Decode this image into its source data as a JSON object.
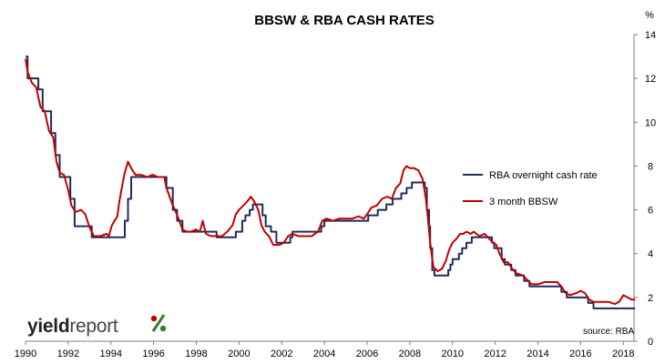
{
  "chart_data": {
    "type": "line",
    "title": "BBSW & RBA CASH RATES",
    "ylabel": "%",
    "xlim": [
      1990,
      2018.5
    ],
    "ylim": [
      0,
      14
    ],
    "x_ticks": [
      "1990",
      "1992",
      "1994",
      "1996",
      "1998",
      "2000",
      "2002",
      "2004",
      "2006",
      "2008",
      "2010",
      "2012",
      "2014",
      "2016",
      "2018"
    ],
    "y_ticks": [
      "0",
      "2",
      "4",
      "6",
      "8",
      "10",
      "12",
      "14"
    ],
    "grid": false,
    "legend_position": "right",
    "source": "source: RBA",
    "logo": {
      "part1": "yield",
      "part2": "report",
      "symbol": "%"
    },
    "series": [
      {
        "name": "RBA overnight cash rate",
        "color": "#1f2d5c",
        "step": true,
        "points": [
          [
            1990.0,
            13.0
          ],
          [
            1990.1,
            12.0
          ],
          [
            1990.6,
            11.5
          ],
          [
            1990.8,
            10.5
          ],
          [
            1991.2,
            9.5
          ],
          [
            1991.4,
            8.5
          ],
          [
            1991.6,
            7.5
          ],
          [
            1992.1,
            6.5
          ],
          [
            1992.3,
            5.25
          ],
          [
            1993.1,
            4.75
          ],
          [
            1994.65,
            5.5
          ],
          [
            1994.8,
            6.5
          ],
          [
            1994.95,
            7.5
          ],
          [
            1996.6,
            7.0
          ],
          [
            1996.9,
            6.0
          ],
          [
            1997.1,
            5.5
          ],
          [
            1997.35,
            5.0
          ],
          [
            1997.55,
            5.0
          ],
          [
            1998.95,
            4.75
          ],
          [
            1999.85,
            5.0
          ],
          [
            2000.15,
            5.5
          ],
          [
            2000.3,
            5.75
          ],
          [
            2000.5,
            6.0
          ],
          [
            2000.65,
            6.25
          ],
          [
            2001.1,
            5.75
          ],
          [
            2001.25,
            5.25
          ],
          [
            2001.5,
            5.0
          ],
          [
            2001.75,
            4.5
          ],
          [
            2002.4,
            4.75
          ],
          [
            2002.5,
            5.0
          ],
          [
            2003.85,
            5.25
          ],
          [
            2004.0,
            5.5
          ],
          [
            2005.2,
            5.5
          ],
          [
            2006.05,
            5.75
          ],
          [
            2006.5,
            6.0
          ],
          [
            2006.9,
            6.25
          ],
          [
            2007.2,
            6.5
          ],
          [
            2007.6,
            6.75
          ],
          [
            2007.85,
            7.0
          ],
          [
            2008.1,
            7.25
          ],
          [
            2008.7,
            7.0
          ],
          [
            2008.8,
            6.0
          ],
          [
            2008.9,
            5.25
          ],
          [
            2008.95,
            4.25
          ],
          [
            2009.05,
            3.25
          ],
          [
            2009.15,
            3.0
          ],
          [
            2009.8,
            3.25
          ],
          [
            2009.9,
            3.5
          ],
          [
            2010.0,
            3.75
          ],
          [
            2010.3,
            4.0
          ],
          [
            2010.45,
            4.25
          ],
          [
            2010.65,
            4.5
          ],
          [
            2010.9,
            4.75
          ],
          [
            2011.85,
            4.5
          ],
          [
            2011.95,
            4.25
          ],
          [
            2012.3,
            3.75
          ],
          [
            2012.45,
            3.5
          ],
          [
            2012.75,
            3.25
          ],
          [
            2012.95,
            3.0
          ],
          [
            2013.35,
            2.75
          ],
          [
            2013.6,
            2.5
          ],
          [
            2015.1,
            2.25
          ],
          [
            2015.35,
            2.0
          ],
          [
            2016.35,
            1.75
          ],
          [
            2016.6,
            1.5
          ],
          [
            2018.55,
            1.5
          ]
        ]
      },
      {
        "name": "3 month BBSW",
        "color": "#c00000",
        "step": false,
        "points": [
          [
            1990.0,
            12.9
          ],
          [
            1990.1,
            12.3
          ],
          [
            1990.3,
            11.8
          ],
          [
            1990.5,
            11.6
          ],
          [
            1990.7,
            10.7
          ],
          [
            1990.9,
            10.5
          ],
          [
            1991.1,
            9.6
          ],
          [
            1991.3,
            9.3
          ],
          [
            1991.45,
            8.2
          ],
          [
            1991.6,
            7.7
          ],
          [
            1991.8,
            7.6
          ],
          [
            1992.0,
            6.9
          ],
          [
            1992.15,
            6.2
          ],
          [
            1992.35,
            5.9
          ],
          [
            1992.6,
            6.0
          ],
          [
            1992.8,
            5.8
          ],
          [
            1993.0,
            5.2
          ],
          [
            1993.2,
            4.8
          ],
          [
            1993.5,
            4.8
          ],
          [
            1993.8,
            4.9
          ],
          [
            1993.9,
            4.8
          ],
          [
            1994.05,
            5.3
          ],
          [
            1994.3,
            5.7
          ],
          [
            1994.4,
            6.4
          ],
          [
            1994.55,
            7.2
          ],
          [
            1994.65,
            7.7
          ],
          [
            1994.8,
            8.2
          ],
          [
            1994.95,
            7.9
          ],
          [
            1995.15,
            7.6
          ],
          [
            1995.4,
            7.6
          ],
          [
            1995.7,
            7.5
          ],
          [
            1995.95,
            7.6
          ],
          [
            1996.2,
            7.5
          ],
          [
            1996.5,
            7.5
          ],
          [
            1996.6,
            7.0
          ],
          [
            1996.75,
            6.6
          ],
          [
            1996.9,
            6.2
          ],
          [
            1997.0,
            6.0
          ],
          [
            1997.2,
            5.5
          ],
          [
            1997.35,
            5.1
          ],
          [
            1997.55,
            5.0
          ],
          [
            1997.75,
            5.0
          ],
          [
            1998.0,
            5.1
          ],
          [
            1998.1,
            5.0
          ],
          [
            1998.2,
            5.1
          ],
          [
            1998.3,
            5.5
          ],
          [
            1998.45,
            4.9
          ],
          [
            1998.7,
            4.8
          ],
          [
            1998.95,
            4.8
          ],
          [
            1999.2,
            4.8
          ],
          [
            1999.45,
            5.0
          ],
          [
            1999.7,
            5.3
          ],
          [
            1999.85,
            5.8
          ],
          [
            2000.0,
            6.0
          ],
          [
            2000.2,
            6.2
          ],
          [
            2000.4,
            6.4
          ],
          [
            2000.55,
            6.6
          ],
          [
            2000.7,
            6.4
          ],
          [
            2000.9,
            6.0
          ],
          [
            2001.05,
            5.3
          ],
          [
            2001.2,
            5.0
          ],
          [
            2001.4,
            4.8
          ],
          [
            2001.6,
            4.4
          ],
          [
            2001.9,
            4.4
          ],
          [
            2002.1,
            4.5
          ],
          [
            2002.3,
            4.8
          ],
          [
            2002.5,
            4.9
          ],
          [
            2002.8,
            4.8
          ],
          [
            2003.1,
            4.8
          ],
          [
            2003.4,
            4.8
          ],
          [
            2003.7,
            5.0
          ],
          [
            2003.9,
            5.5
          ],
          [
            2004.1,
            5.6
          ],
          [
            2004.4,
            5.5
          ],
          [
            2004.7,
            5.6
          ],
          [
            2004.95,
            5.6
          ],
          [
            2005.3,
            5.6
          ],
          [
            2005.6,
            5.7
          ],
          [
            2005.85,
            5.6
          ],
          [
            2006.0,
            5.8
          ],
          [
            2006.2,
            6.1
          ],
          [
            2006.45,
            6.2
          ],
          [
            2006.7,
            6.5
          ],
          [
            2006.95,
            6.6
          ],
          [
            2007.15,
            6.5
          ],
          [
            2007.35,
            7.0
          ],
          [
            2007.55,
            7.2
          ],
          [
            2007.7,
            7.8
          ],
          [
            2007.85,
            8.0
          ],
          [
            2008.0,
            7.9
          ],
          [
            2008.2,
            7.9
          ],
          [
            2008.4,
            7.8
          ],
          [
            2008.6,
            7.4
          ],
          [
            2008.75,
            6.5
          ],
          [
            2008.85,
            5.6
          ],
          [
            2008.95,
            4.5
          ],
          [
            2009.1,
            3.4
          ],
          [
            2009.3,
            3.2
          ],
          [
            2009.5,
            3.3
          ],
          [
            2009.7,
            3.7
          ],
          [
            2009.85,
            4.2
          ],
          [
            2010.0,
            4.5
          ],
          [
            2010.2,
            4.7
          ],
          [
            2010.35,
            4.9
          ],
          [
            2010.5,
            4.9
          ],
          [
            2010.65,
            5.0
          ],
          [
            2010.85,
            4.9
          ],
          [
            2011.0,
            5.0
          ],
          [
            2011.25,
            4.8
          ],
          [
            2011.5,
            4.9
          ],
          [
            2011.7,
            4.7
          ],
          [
            2011.9,
            4.5
          ],
          [
            2012.05,
            4.4
          ],
          [
            2012.2,
            4.0
          ],
          [
            2012.4,
            3.6
          ],
          [
            2012.6,
            3.6
          ],
          [
            2012.8,
            3.3
          ],
          [
            2013.0,
            3.1
          ],
          [
            2013.3,
            3.0
          ],
          [
            2013.5,
            2.8
          ],
          [
            2013.7,
            2.6
          ],
          [
            2014.0,
            2.6
          ],
          [
            2014.3,
            2.7
          ],
          [
            2014.6,
            2.7
          ],
          [
            2014.9,
            2.7
          ],
          [
            2015.1,
            2.5
          ],
          [
            2015.3,
            2.2
          ],
          [
            2015.5,
            2.1
          ],
          [
            2015.8,
            2.2
          ],
          [
            2016.0,
            2.3
          ],
          [
            2016.2,
            2.2
          ],
          [
            2016.4,
            1.9
          ],
          [
            2016.6,
            1.8
          ],
          [
            2016.8,
            1.8
          ],
          [
            2017.0,
            1.8
          ],
          [
            2017.3,
            1.8
          ],
          [
            2017.6,
            1.7
          ],
          [
            2017.8,
            1.8
          ],
          [
            2018.0,
            2.1
          ],
          [
            2018.2,
            2.0
          ],
          [
            2018.4,
            1.9
          ],
          [
            2018.55,
            1.9
          ]
        ]
      }
    ]
  }
}
